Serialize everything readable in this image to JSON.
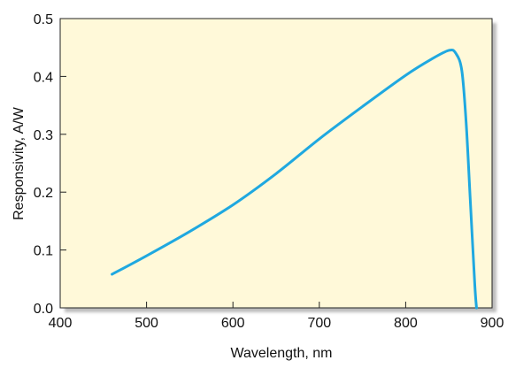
{
  "chart_data": {
    "type": "line",
    "title": "",
    "xlabel": "Wavelength, nm",
    "ylabel": "Responsivity, A/W",
    "xlim": [
      400,
      900
    ],
    "ylim": [
      0.0,
      0.5
    ],
    "x_ticks": [
      400,
      500,
      600,
      700,
      800,
      900
    ],
    "x_tick_labels": [
      "400",
      "500",
      "600",
      "700",
      "800",
      "900"
    ],
    "y_ticks": [
      0.0,
      0.1,
      0.2,
      0.3,
      0.4,
      0.5
    ],
    "y_tick_labels": [
      "0.0",
      "0.1",
      "0.2",
      "0.3",
      "0.4",
      "0.5"
    ],
    "grid": false,
    "legend": "none",
    "background_color": "#fff9d9",
    "line_color": "#1fa8e0",
    "series": [
      {
        "x": [
          460,
          500,
          550,
          600,
          650,
          700,
          750,
          800,
          830,
          850,
          858,
          865,
          870,
          875,
          880,
          882
        ],
        "y": [
          0.058,
          0.09,
          0.132,
          0.178,
          0.232,
          0.292,
          0.348,
          0.402,
          0.43,
          0.445,
          0.44,
          0.41,
          0.32,
          0.18,
          0.04,
          0.0
        ]
      }
    ]
  }
}
